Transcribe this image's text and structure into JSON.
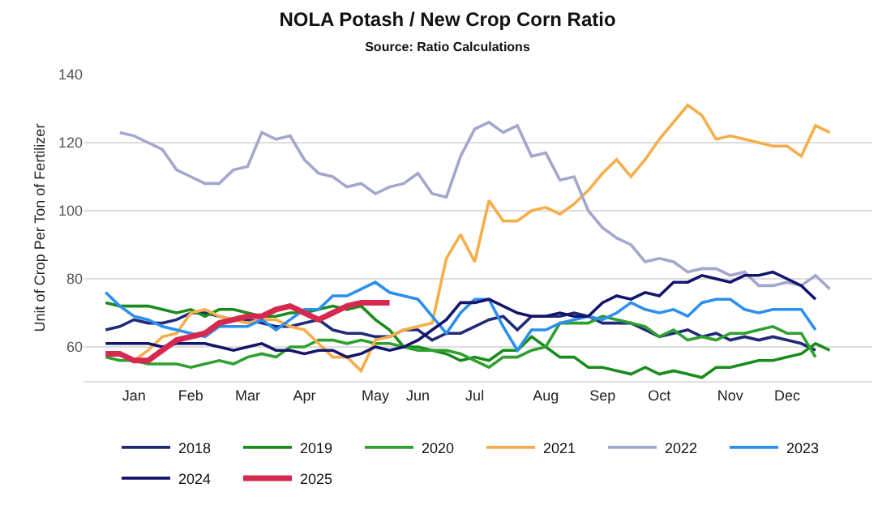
{
  "chart_data": {
    "type": "line",
    "title": "NOLA Potash / New Crop Corn Ratio",
    "subtitle": "Source: Ratio Calculations",
    "ylabel": "Unit of Crop Per Ton of Fertilizer",
    "categories": [
      null,
      null,
      "Jan",
      null,
      null,
      null,
      "Feb",
      null,
      null,
      null,
      "Mar",
      null,
      null,
      null,
      "Apr",
      null,
      null,
      null,
      null,
      "May",
      null,
      null,
      "Jun",
      null,
      null,
      null,
      "Jul",
      null,
      null,
      null,
      null,
      "Aug",
      null,
      null,
      null,
      "Sep",
      null,
      null,
      null,
      "Oct",
      null,
      null,
      null,
      null,
      "Nov",
      null,
      null,
      null,
      "Dec",
      null,
      null,
      null
    ],
    "ylim": [
      50,
      140
    ],
    "yticks": [
      60,
      80,
      100,
      120,
      140
    ],
    "grid": "y",
    "legend": "bottom",
    "marker": "none",
    "line_style": "solid",
    "series": [
      {
        "name": "2018",
        "color": "#1f2a78",
        "values": [
          65,
          66,
          68,
          67,
          67,
          68,
          70,
          70,
          69,
          68,
          68,
          67,
          66,
          66,
          67,
          68,
          65,
          64,
          64,
          63,
          63,
          65,
          65,
          62,
          64,
          64,
          66,
          68,
          69,
          65,
          69,
          69,
          69,
          70,
          69,
          67,
          67,
          67,
          65,
          63,
          64,
          65,
          63,
          64,
          62,
          63,
          62,
          63,
          62,
          61,
          59,
          null
        ]
      },
      {
        "name": "2019",
        "color": "#1a8c1a",
        "values": [
          73,
          72,
          72,
          72,
          71,
          70,
          71,
          69,
          71,
          71,
          70,
          69,
          69,
          70,
          70,
          71,
          72,
          71,
          72,
          68,
          65,
          60,
          60,
          59,
          58,
          56,
          57,
          56,
          59,
          59,
          63,
          60,
          57,
          57,
          54,
          54,
          53,
          52,
          54,
          52,
          53,
          52,
          51,
          54,
          54,
          55,
          56,
          56,
          57,
          58,
          61,
          59
        ]
      },
      {
        "name": "2020",
        "color": "#2ea02e",
        "values": [
          57,
          56,
          56,
          55,
          55,
          55,
          54,
          55,
          56,
          55,
          57,
          58,
          57,
          60,
          60,
          62,
          62,
          61,
          62,
          61,
          61,
          60,
          59,
          59,
          59,
          58,
          56,
          54,
          57,
          57,
          59,
          60,
          67,
          67,
          67,
          69,
          68,
          67,
          66,
          63,
          65,
          62,
          63,
          62,
          64,
          64,
          65,
          66,
          64,
          64,
          57,
          null
        ]
      },
      {
        "name": "2021",
        "color": "#f7ae4a",
        "values": [
          null,
          null,
          56,
          59,
          63,
          64,
          70,
          71,
          69,
          68,
          67,
          68,
          68,
          66,
          65,
          61,
          57,
          57,
          53,
          62,
          63,
          65,
          66,
          67,
          86,
          93,
          85,
          103,
          97,
          97,
          100,
          101,
          99,
          102,
          106,
          111,
          115,
          110,
          115,
          121,
          126,
          131,
          128,
          121,
          122,
          121,
          120,
          119,
          119,
          116,
          125,
          123
        ]
      },
      {
        "name": "2022",
        "color": "#a3a7cc",
        "values": [
          null,
          123,
          122,
          120,
          118,
          112,
          110,
          108,
          108,
          112,
          113,
          123,
          121,
          122,
          115,
          111,
          110,
          107,
          108,
          105,
          107,
          108,
          111,
          105,
          104,
          116,
          124,
          126,
          123,
          125,
          116,
          117,
          109,
          110,
          100,
          95,
          92,
          90,
          85,
          86,
          85,
          82,
          83,
          83,
          81,
          82,
          78,
          78,
          79,
          78,
          81,
          77
        ]
      },
      {
        "name": "2023",
        "color": "#2b8ff0",
        "values": [
          76,
          72,
          69,
          68,
          66,
          65,
          64,
          63,
          66,
          66,
          66,
          68,
          65,
          68,
          71,
          71,
          75,
          75,
          77,
          79,
          76,
          75,
          74,
          69,
          64,
          70,
          74,
          74,
          66,
          59,
          65,
          65,
          67,
          68,
          69,
          68,
          70,
          73,
          71,
          70,
          71,
          69,
          73,
          74,
          74,
          71,
          70,
          71,
          71,
          71,
          65,
          null
        ]
      },
      {
        "name": "2024",
        "color": "#12156b",
        "values": [
          61,
          61,
          61,
          61,
          60,
          61,
          61,
          61,
          60,
          59,
          60,
          61,
          59,
          59,
          58,
          59,
          59,
          57,
          58,
          60,
          59,
          60,
          62,
          65,
          68,
          73,
          73,
          74,
          72,
          70,
          69,
          69,
          70,
          69,
          69,
          73,
          75,
          74,
          76,
          75,
          79,
          79,
          81,
          80,
          79,
          81,
          81,
          82,
          80,
          78,
          74,
          null
        ]
      },
      {
        "name": "2025",
        "color": "#d6294f",
        "values": [
          58,
          58,
          56,
          56,
          59,
          62,
          63,
          64,
          67,
          68,
          69,
          69,
          71,
          72,
          70,
          68,
          70,
          72,
          73,
          73,
          73,
          null,
          null,
          null,
          null,
          null,
          null,
          null,
          null,
          null,
          null,
          null,
          null,
          null,
          null,
          null,
          null,
          null,
          null,
          null,
          null,
          null,
          null,
          null,
          null,
          null,
          null,
          null,
          null,
          null,
          null,
          null
        ]
      }
    ]
  }
}
